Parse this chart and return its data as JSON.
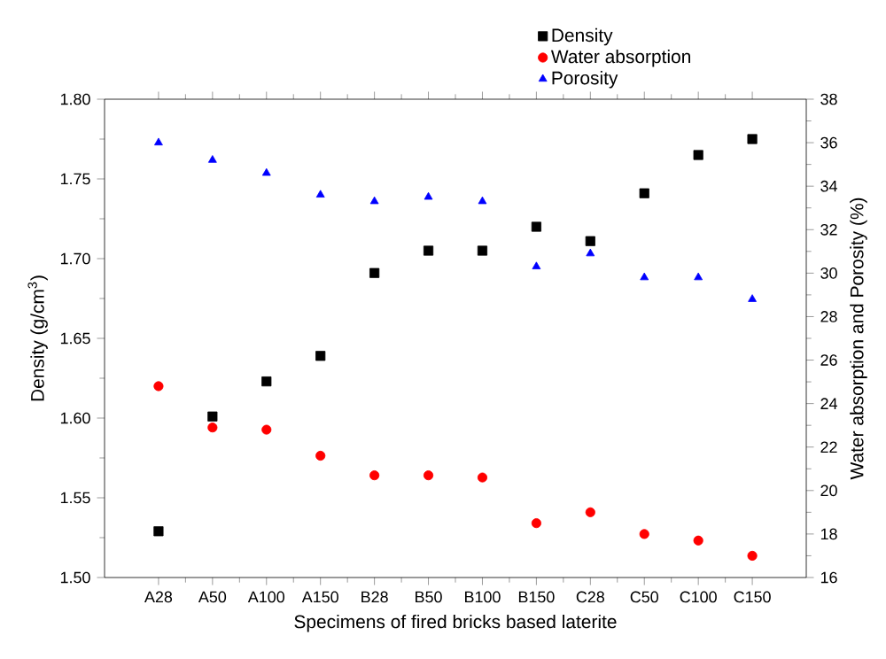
{
  "chart_data": {
    "type": "scatter",
    "xlabel": "Specimens of fired bricks based laterite",
    "ylabel": "Density (g/cm$^{3}$)",
    "y2label": "Water absorption and Porosity (%)",
    "categories": [
      "A28",
      "A50",
      "A100",
      "A150",
      "B28",
      "B50",
      "B100",
      "B150",
      "C28",
      "C50",
      "C100",
      "C150"
    ],
    "series": [
      {
        "name": "Density",
        "color": "#000000",
        "marker": "square",
        "values": [
          1.529,
          1.601,
          1.623,
          1.639,
          1.691,
          1.705,
          1.705,
          1.72,
          1.711,
          1.741,
          1.765,
          1.775
        ]
      },
      {
        "name": "Water absorption",
        "color": "#ff0000",
        "marker": "circle",
        "axis": "y2",
        "values": [
          24.8,
          22.9,
          22.8,
          21.6,
          20.7,
          20.7,
          20.6,
          18.5,
          19.0,
          18.0,
          17.7,
          17.0
        ]
      },
      {
        "name": "Porosity",
        "color": "#0000ff",
        "marker": "triangle",
        "axis": "y2",
        "values": [
          36.0,
          35.2,
          34.6,
          33.6,
          33.3,
          33.5,
          33.3,
          30.3,
          30.9,
          29.8,
          29.8,
          28.8
        ]
      }
    ],
    "ylim": [
      1.5,
      1.8
    ],
    "yticks": [
      {
        "value": 1.5,
        "label": "1.50"
      },
      {
        "value": 1.55,
        "label": "1.55"
      },
      {
        "value": 1.6,
        "label": "1.60"
      },
      {
        "value": 1.65,
        "label": "1.65"
      },
      {
        "value": 1.7,
        "label": "1.70"
      },
      {
        "value": 1.75,
        "label": "1.75"
      },
      {
        "value": 1.8,
        "label": "1.80"
      }
    ],
    "y2lim": [
      16,
      38
    ],
    "y2ticks": [
      16,
      18,
      20,
      22,
      24,
      26,
      28,
      30,
      32,
      34,
      36,
      38
    ],
    "legend": "top right"
  }
}
